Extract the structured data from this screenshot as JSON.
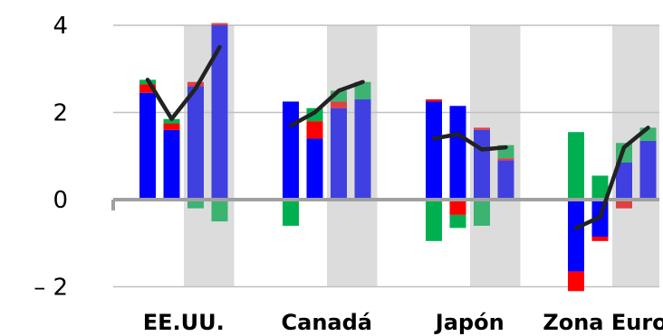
{
  "chart_data": {
    "type": "bar",
    "title": "",
    "xlabel": "",
    "ylabel": "",
    "ylim": [
      -2,
      4
    ],
    "yticks": [
      4,
      2,
      0,
      -2
    ],
    "ytick_labels": [
      "4",
      "2",
      "0",
      "–  2"
    ],
    "grid": true,
    "legend": "none",
    "categories": [
      "EE.UU.",
      "Canadá",
      "Japón",
      "Zona Euro"
    ],
    "bars_per_category": 4,
    "shaded_bar_slots": [
      2,
      3
    ],
    "colors": {
      "blue": "#0000ff",
      "blue_light": "#4040e0",
      "green": "#00b050",
      "green_light": "#3cb371",
      "red": "#ff0000",
      "red_light": "#e04040",
      "line": "#222222",
      "shade": "#dcdcdc",
      "grid": "#c0c0c0",
      "zero_line": "#a0a0a0"
    },
    "series": [
      {
        "color_key": "blue",
        "values": [
          [
            2.45,
            1.6,
            2.6,
            4.0
          ],
          [
            2.25,
            1.4,
            2.1,
            2.3
          ],
          [
            2.25,
            2.15,
            1.6,
            0.9
          ],
          [
            -1.65,
            -0.85,
            0.85,
            1.35
          ]
        ]
      },
      {
        "color_key": "red",
        "values": [
          [
            0.2,
            0.15,
            0.1,
            0.05
          ],
          [
            0,
            0.4,
            0.15,
            0
          ],
          [
            0.05,
            -0.35,
            0.05,
            0.05
          ],
          [
            -0.45,
            -0.1,
            -0.2,
            0
          ]
        ]
      },
      {
        "color_key": "green",
        "values": [
          [
            0.1,
            0.1,
            -0.2,
            -0.5
          ],
          [
            -0.6,
            0.3,
            0.25,
            0.4
          ],
          [
            -0.95,
            -0.3,
            -0.6,
            0.3
          ],
          [
            1.55,
            0.55,
            0.45,
            0.3
          ]
        ]
      }
    ],
    "line": {
      "values": [
        [
          2.75,
          1.85,
          2.55,
          3.5
        ],
        [
          1.7,
          2.0,
          2.5,
          2.7
        ],
        [
          1.4,
          1.5,
          1.15,
          1.2
        ],
        [
          -0.65,
          -0.4,
          1.2,
          1.65
        ]
      ]
    }
  }
}
